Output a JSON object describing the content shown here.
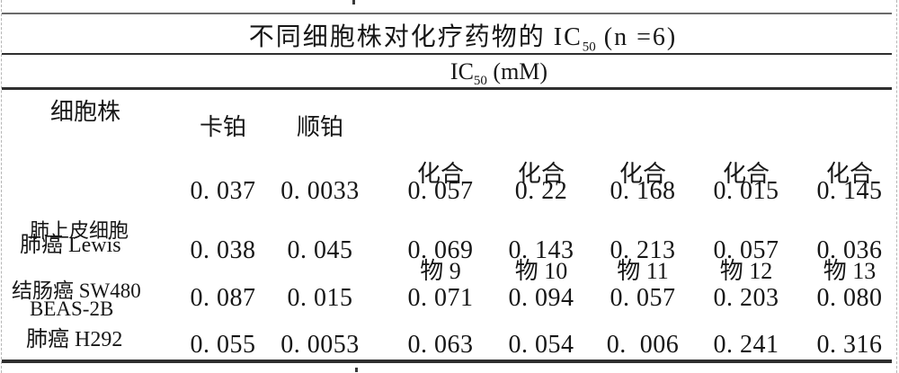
{
  "page": {
    "background": "#ffffff",
    "text_color": "#161616",
    "rule_color": "#2f2f2f"
  },
  "table": {
    "title": {
      "text_pre": "不同细胞株对化疗药物的 IC",
      "subscript": "50",
      "text_post": " (n =6)"
    },
    "unit": {
      "text_pre": "IC",
      "subscript": "50",
      "text_post": " (mM)"
    },
    "columns": {
      "cell_line": "细胞株",
      "carboplatin": "卡铂",
      "cisplatin": "顺铂",
      "compound9": {
        "line1": "化合",
        "line2": "物 9"
      },
      "compound10": {
        "line1": "化合",
        "line2": "物 10"
      },
      "compound11": {
        "line1": "化合",
        "line2": "物 11"
      },
      "compound12": {
        "line1": "化合",
        "line2": "物 12"
      },
      "compound13": {
        "line1": "化合",
        "line2": "物 13"
      }
    },
    "rows": [
      {
        "label_line1": "肺上皮细胞",
        "label_line2": "BEAS-2B",
        "values": [
          "0. 037",
          "0. 0033",
          "0. 057",
          "0. 22",
          "0. 168",
          "0. 015",
          "0. 145"
        ]
      },
      {
        "label_line1": "肺癌 Lewis",
        "label_line2": "",
        "values": [
          "0. 038",
          "0. 045",
          "0. 069",
          "0. 143",
          "0. 213",
          "0. 057",
          "0. 036"
        ]
      },
      {
        "label_line1": "结肠癌 SW480",
        "label_line2": "",
        "values": [
          "0. 087",
          "0. 015",
          "0. 071",
          "0. 094",
          "0. 057",
          "0. 203",
          "0. 080"
        ]
      },
      {
        "label_line1": "肺癌 H292",
        "label_line2": "",
        "values": [
          "0. 055",
          "0. 0053",
          "0. 063",
          "0. 054",
          "0.  006",
          "0. 241",
          "0. 316"
        ]
      }
    ]
  }
}
